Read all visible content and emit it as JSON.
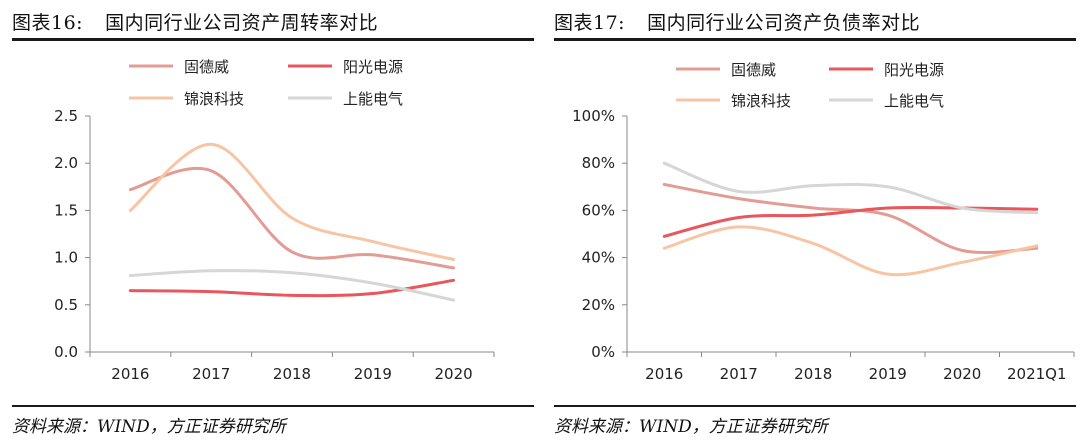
{
  "charts": [
    {
      "figure_number": "图表16:",
      "title": "国内同行业公司资产周转率对比",
      "source": "资料来源：WIND，方正证券研究所"
    },
    {
      "figure_number": "图表17:",
      "title": "国内同行业公司资产负债率对比",
      "source": "资料来源：WIND，方正证券研究所"
    }
  ],
  "series_colors": {
    "固德威": "#e39c94",
    "阳光电源": "#e8575b",
    "锦浪科技": "#f7c4a4",
    "上能电气": "#d6d6d6"
  },
  "chart_data": [
    {
      "type": "line",
      "title": "国内同行业公司资产周转率对比",
      "categories": [
        "2016",
        "2017",
        "2018",
        "2019",
        "2020"
      ],
      "series": [
        {
          "name": "固德威",
          "values": [
            1.72,
            1.92,
            1.06,
            1.03,
            0.89
          ]
        },
        {
          "name": "阳光电源",
          "values": [
            0.65,
            0.64,
            0.6,
            0.62,
            0.76
          ]
        },
        {
          "name": "锦浪科技",
          "values": [
            1.5,
            2.2,
            1.42,
            1.17,
            0.98
          ]
        },
        {
          "name": "上能电气",
          "values": [
            0.81,
            0.86,
            0.84,
            0.73,
            0.55
          ]
        }
      ],
      "yticks": [
        "0.0",
        "0.5",
        "1.0",
        "1.5",
        "2.0",
        "2.5"
      ],
      "ylim": [
        0,
        2.5
      ],
      "xlabel": "",
      "ylabel": "",
      "legend_position": "top",
      "grid": false
    },
    {
      "type": "line",
      "title": "国内同行业公司资产负债率对比",
      "categories": [
        "2016",
        "2017",
        "2018",
        "2019",
        "2020",
        "2021Q1"
      ],
      "series": [
        {
          "name": "固德威",
          "values": [
            71,
            65,
            61,
            58,
            43,
            44
          ]
        },
        {
          "name": "阳光电源",
          "values": [
            49,
            57,
            58,
            61,
            61,
            60.5
          ]
        },
        {
          "name": "锦浪科技",
          "values": [
            44,
            53,
            46,
            33,
            38,
            45
          ]
        },
        {
          "name": "上能电气",
          "values": [
            80,
            68,
            70.5,
            70,
            61,
            59
          ]
        }
      ],
      "yticks": [
        "0%",
        "20%",
        "40%",
        "60%",
        "80%",
        "100%"
      ],
      "ylim": [
        0,
        100
      ],
      "xlabel": "",
      "ylabel": "",
      "legend_position": "top",
      "grid": false
    }
  ]
}
